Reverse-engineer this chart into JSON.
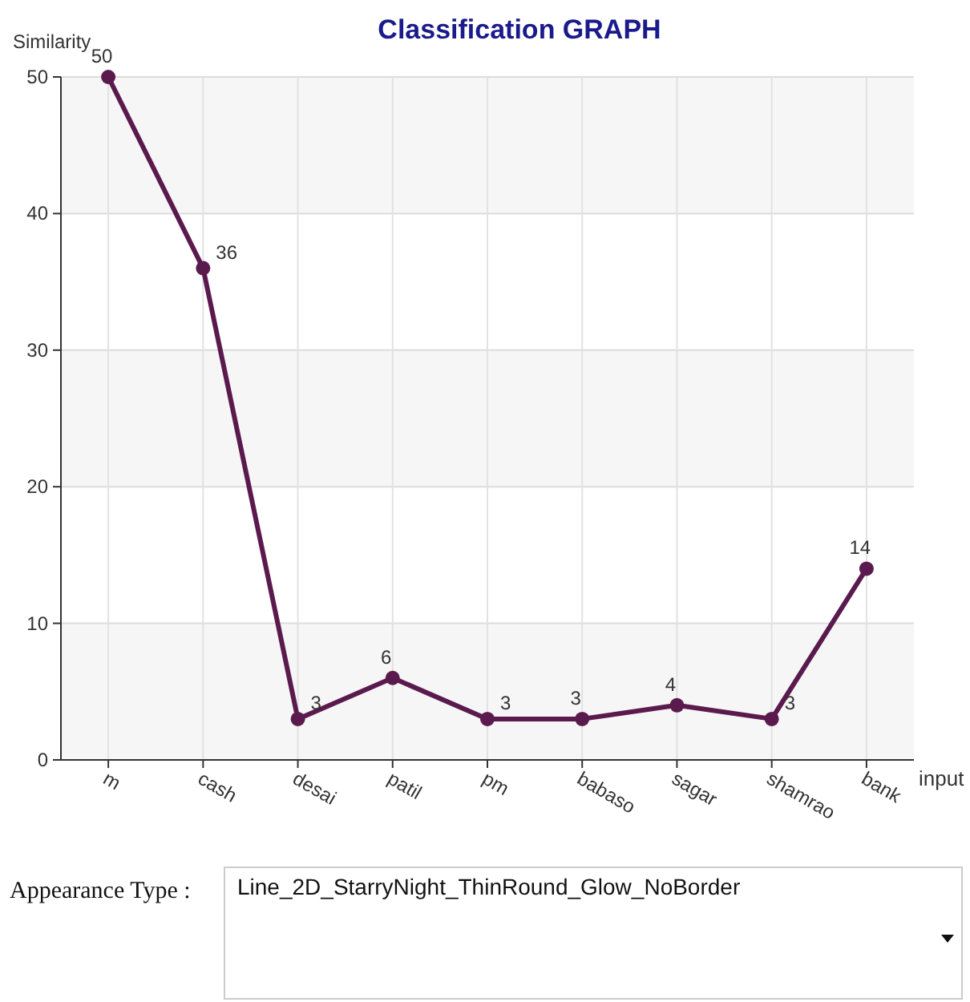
{
  "chart_data": {
    "type": "line",
    "title": "Classification GRAPH",
    "xlabel": "input",
    "ylabel": "Similarity",
    "categories": [
      "m",
      "cash",
      "desai",
      "patil",
      "pm",
      "babaso",
      "sagar",
      "shamrao",
      "bank"
    ],
    "series": [
      {
        "color": "#5b1a4e",
        "values": [
          50,
          36,
          3,
          6,
          3,
          3,
          4,
          3,
          14
        ]
      }
    ],
    "ylim": [
      0,
      50
    ],
    "yticks": [
      0,
      10,
      20,
      30,
      40,
      50
    ],
    "grid": true,
    "marker": "circle",
    "line_style": "solid",
    "data_labels": true,
    "annotations": [
      "Appearance Type :",
      "Line_2D_StarryNight_ThinRound_Glow_NoBorder"
    ]
  }
}
